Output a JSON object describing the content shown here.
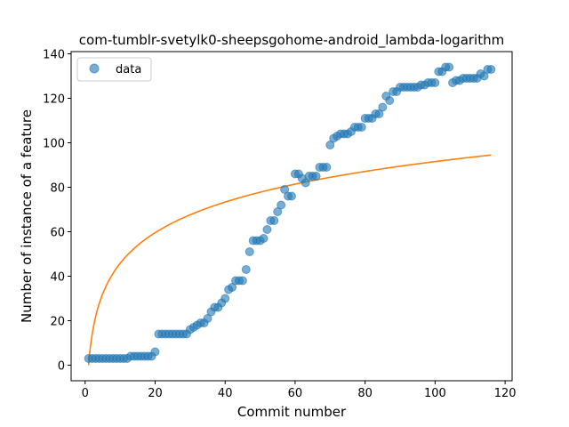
{
  "chart_data": {
    "type": "scatter",
    "title": "com-tumblr-svetylk0-sheepsgohome-android_lambda-logarithm",
    "xlabel": "Commit number",
    "ylabel": "Number of instance of a feature",
    "xlim": [
      -4,
      122
    ],
    "ylim": [
      -7,
      141
    ],
    "xticks": [
      0,
      20,
      40,
      60,
      80,
      100,
      120
    ],
    "yticks": [
      0,
      20,
      40,
      60,
      80,
      100,
      120,
      140
    ],
    "legend": {
      "placement": "top-left",
      "entries": [
        "data"
      ]
    },
    "colors": {
      "scatter": "#1f77b4",
      "fit": "#ff7f0e"
    },
    "series": [
      {
        "name": "data",
        "kind": "scatter",
        "x": [
          1,
          2,
          3,
          4,
          5,
          6,
          7,
          8,
          9,
          10,
          11,
          12,
          13,
          14,
          15,
          16,
          17,
          18,
          19,
          20,
          21,
          22,
          23,
          24,
          25,
          26,
          27,
          28,
          29,
          30,
          31,
          32,
          33,
          34,
          35,
          36,
          37,
          38,
          39,
          40,
          41,
          42,
          43,
          44,
          45,
          46,
          47,
          48,
          49,
          50,
          51,
          52,
          53,
          54,
          55,
          56,
          57,
          58,
          59,
          60,
          61,
          62,
          63,
          64,
          65,
          66,
          67,
          68,
          69,
          70,
          71,
          72,
          73,
          74,
          75,
          76,
          77,
          78,
          79,
          80,
          81,
          82,
          83,
          84,
          85,
          86,
          87,
          88,
          89,
          90,
          91,
          92,
          93,
          94,
          95,
          96,
          97,
          98,
          99,
          100,
          101,
          102,
          103,
          104,
          105,
          106,
          107,
          108,
          109,
          110,
          111,
          112,
          113,
          114,
          115,
          116
        ],
        "y": [
          3,
          3,
          3,
          3,
          3,
          3,
          3,
          3,
          3,
          3,
          3,
          3,
          4,
          4,
          4,
          4,
          4,
          4,
          4,
          6,
          14,
          14,
          14,
          14,
          14,
          14,
          14,
          14,
          14,
          16,
          17,
          18,
          19,
          19,
          21,
          24,
          26,
          26,
          28,
          30,
          34,
          35,
          38,
          38,
          38,
          43,
          51,
          56,
          56,
          56,
          57,
          61,
          65,
          65,
          69,
          72,
          79,
          76,
          76,
          86,
          86,
          84,
          82,
          85,
          85,
          85,
          89,
          89,
          89,
          99,
          102,
          103,
          104,
          104,
          104,
          105,
          107,
          107,
          107,
          111,
          111,
          111,
          113,
          113,
          116,
          121,
          119,
          123,
          123,
          125,
          125,
          125,
          125,
          125,
          125,
          126,
          126,
          127,
          127,
          127,
          132,
          132,
          134,
          134,
          127,
          128,
          128,
          129,
          129,
          129,
          129,
          129,
          131,
          130,
          133,
          133
        ]
      },
      {
        "name": "",
        "kind": "line",
        "model": "logarithm",
        "x_range": [
          1,
          116
        ],
        "y_at_end": 94.5
      }
    ]
  }
}
